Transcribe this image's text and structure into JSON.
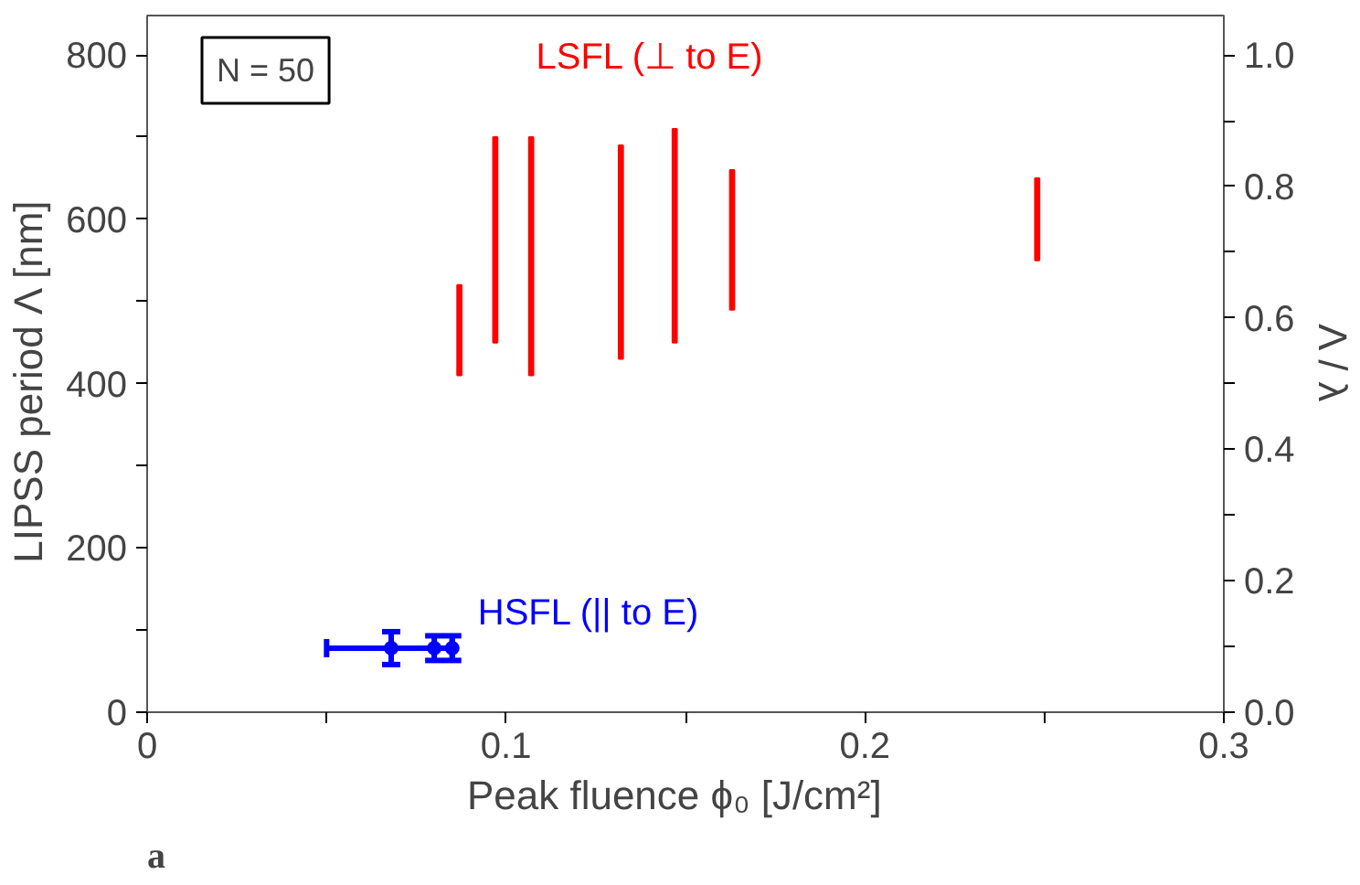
{
  "chart_data": {
    "type": "bar",
    "xlabel": "Peak fluence  ϕ₀  [J/cm²]",
    "ylabel": "LIPSS period  Λ   [nm]",
    "y2label": "Λ / λ",
    "annotations": [
      "N = 50",
      "a"
    ],
    "series": [
      {
        "name": "LSFL (⊥ to E)",
        "color": "#ff0000",
        "x": [
          0.087,
          0.097,
          0.107,
          0.132,
          0.147,
          0.163,
          0.248
        ],
        "base": [
          410,
          450,
          410,
          430,
          450,
          490,
          550
        ],
        "values": [
          110,
          250,
          290,
          260,
          260,
          170,
          100
        ]
      },
      {
        "name": "HSFL (|| to E)",
        "type": "scatter",
        "marker": "circle",
        "color": "#0000ff",
        "x": [
          0.068,
          0.08,
          0.085
        ],
        "values": [
          78,
          78,
          78
        ],
        "errors": [
          20,
          15,
          15
        ],
        "xerrors": [
          [
            0.05,
            0.085
          ],
          null,
          null
        ]
      }
    ],
    "xlim": [
      0,
      0.3
    ],
    "xticks": [
      0,
      {
        "value": 0.05,
        "label": null
      },
      0.1,
      {
        "value": 0.15,
        "label": null
      },
      0.2,
      {
        "value": 0.25,
        "label": null
      },
      0.3
    ],
    "ylim": [
      0,
      848
    ],
    "yticks": [
      0,
      {
        "value": 100,
        "label": null
      },
      200,
      {
        "value": 300,
        "label": null
      },
      400,
      {
        "value": 500,
        "label": null
      },
      600,
      {
        "value": 700,
        "label": null
      },
      800
    ],
    "y2lim": [
      0,
      1.06
    ],
    "y2ticks": [
      {
        "value": 0,
        "label": "0.0"
      },
      {
        "value": 0.1,
        "label": null
      },
      {
        "value": 0.2,
        "label": "0.2"
      },
      {
        "value": 0.3,
        "label": null
      },
      {
        "value": 0.4,
        "label": "0.4"
      },
      {
        "value": 0.5,
        "label": null
      },
      {
        "value": 0.6,
        "label": "0.6"
      },
      {
        "value": 0.7,
        "label": null
      },
      {
        "value": 0.8,
        "label": "0.8"
      },
      {
        "value": 0.9,
        "label": null
      },
      {
        "value": 1.0,
        "label": "1.0"
      }
    ],
    "grid": false
  }
}
